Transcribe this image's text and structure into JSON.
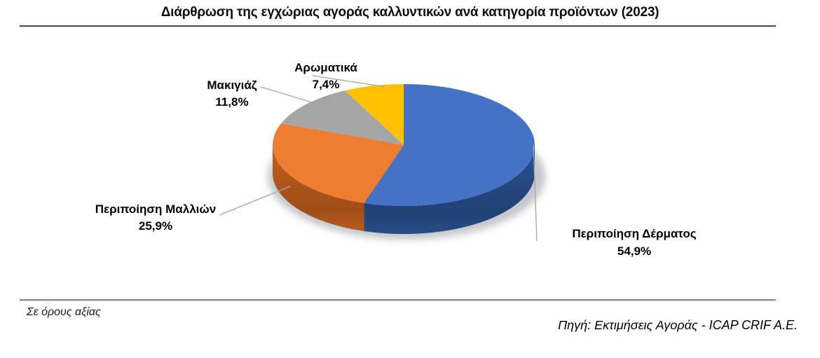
{
  "title": "Διάρθρωση της εγχώριας αγοράς καλλυντικών ανά κατηγορία προϊόντων (2023)",
  "footnote_left": "Σε όρους αξίας",
  "footnote_right": "Πηγή: Εκτιμήσεις Αγοράς - ICAP CRIF A.E.",
  "chart_data": {
    "type": "pie",
    "style": "3d",
    "title": "Διάρθρωση της εγχώριας αγοράς καλλυντικών ανά κατηγορία προϊόντων (2023)",
    "unit": "percent share of market value",
    "start_position": "12-oclock",
    "direction": "clockwise",
    "legend_position": "none",
    "data_labels": "category name and percent outside slices with leader lines",
    "slices": [
      {
        "label": "Περιποίηση Δέρματος",
        "value": 54.9,
        "pct_label": "54,9%",
        "color": "#4472C4",
        "side_color": "#29508F"
      },
      {
        "label": "Περιποίηση Μαλλιών",
        "value": 25.9,
        "pct_label": "25,9%",
        "color": "#ED7D31",
        "side_color": "#C25F1C"
      },
      {
        "label": "Μακιγιάζ",
        "value": 11.8,
        "pct_label": "11,8%",
        "color": "#A5A5A5",
        "side_color": "#7F7F7F"
      },
      {
        "label": "Αρωματικά",
        "value": 7.4,
        "pct_label": "7,4%",
        "color": "#FFC000",
        "side_color": "#BF9000"
      }
    ]
  },
  "colors": {
    "divider_top": "#44546A",
    "divider_bottom": "#7E8A9A",
    "leader_line": "#A6A6A6",
    "text": "#000000",
    "background": "#FFFFFF"
  }
}
